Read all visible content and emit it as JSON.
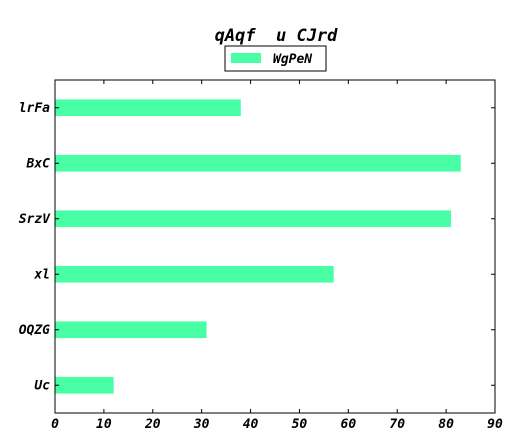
{
  "chart_data": {
    "type": "bar",
    "orientation": "horizontal",
    "title": "qAqf  u CJrd",
    "xlabel": "",
    "ylabel": "",
    "categories": [
      "lrFa",
      "BxC",
      "SrzV",
      "xl",
      "OQZG",
      "Uc"
    ],
    "series": [
      {
        "name": "WgPeN",
        "values": [
          38,
          83,
          81,
          57,
          31,
          12
        ],
        "color": "#48ffa5"
      }
    ],
    "xlim": [
      0,
      90
    ],
    "xticks": [
      0,
      10,
      20,
      30,
      40,
      50,
      60,
      70,
      80,
      90
    ],
    "grid": false,
    "legend_position": "top-center"
  }
}
